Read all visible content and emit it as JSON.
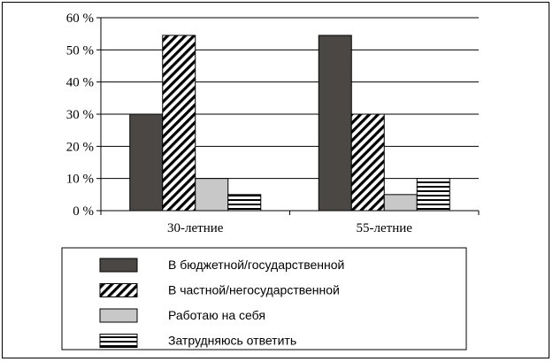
{
  "chart_data": {
    "type": "bar",
    "title": "",
    "xlabel": "",
    "ylabel": "",
    "categories": [
      "30-летние",
      "55-летние"
    ],
    "ylim": [
      0,
      60
    ],
    "yticks": [
      0,
      10,
      20,
      30,
      40,
      50,
      60
    ],
    "ytick_suffix": " %",
    "grid": true,
    "legend_position": "bottom",
    "series": [
      {
        "name": "В бюджетной/государственной",
        "values": [
          30,
          54.5
        ],
        "fill": "dark",
        "color": "#4a4744"
      },
      {
        "name": "В частной/негосударственной",
        "values": [
          54.5,
          30
        ],
        "fill": "diagonal-hatch",
        "color": "#000000"
      },
      {
        "name": "Работаю на себя",
        "values": [
          10,
          5
        ],
        "fill": "light",
        "color": "#c8c8c8"
      },
      {
        "name": "Затрудняюсь ответить",
        "values": [
          5,
          10
        ],
        "fill": "horizontal-stripes",
        "color": "#000000"
      }
    ]
  }
}
